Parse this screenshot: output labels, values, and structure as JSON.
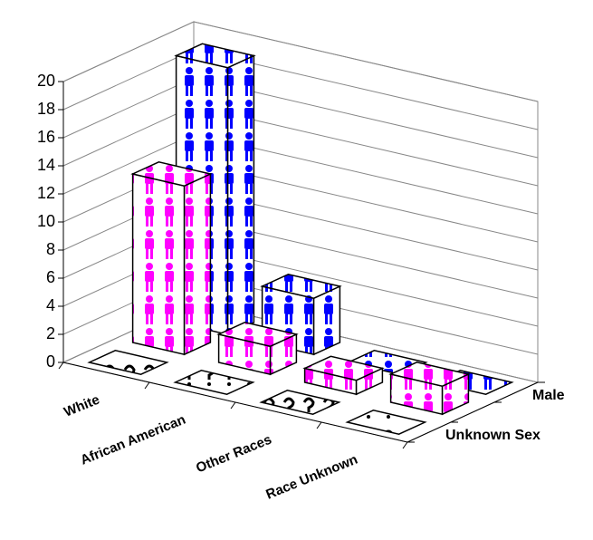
{
  "chart_data": {
    "type": "bar3d",
    "categories": [
      "White",
      "African American",
      "Other Races",
      "Race Unknown"
    ],
    "series": [
      {
        "name": "Unknown Sex",
        "color": "#000000",
        "values": [
          0,
          0,
          0,
          0
        ]
      },
      {
        "name": null,
        "color": "#ff00ff",
        "values": [
          12,
          2,
          1,
          2
        ]
      },
      {
        "name": "Male",
        "color": "#0000ff",
        "values": [
          19,
          4,
          0,
          0
        ]
      }
    ],
    "ylim": [
      0,
      20
    ],
    "yticks": [
      0,
      2,
      4,
      6,
      8,
      10,
      12,
      14,
      16,
      18,
      20
    ],
    "grid": true
  }
}
